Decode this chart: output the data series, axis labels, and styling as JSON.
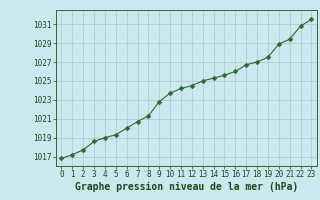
{
  "x": [
    0,
    1,
    2,
    3,
    4,
    5,
    6,
    7,
    8,
    9,
    10,
    11,
    12,
    13,
    14,
    15,
    16,
    17,
    18,
    19,
    20,
    21,
    22,
    23
  ],
  "y": [
    1016.8,
    1017.2,
    1017.7,
    1018.6,
    1019.0,
    1019.3,
    1020.0,
    1020.7,
    1021.3,
    1022.8,
    1023.7,
    1024.2,
    1024.5,
    1025.0,
    1025.3,
    1025.6,
    1026.0,
    1026.7,
    1027.0,
    1027.5,
    1028.9,
    1029.4,
    1030.8,
    1031.5
  ],
  "ylim": [
    1016.0,
    1032.5
  ],
  "yticks": [
    1017,
    1019,
    1021,
    1023,
    1025,
    1027,
    1029,
    1031
  ],
  "xticks": [
    0,
    1,
    2,
    3,
    4,
    5,
    6,
    7,
    8,
    9,
    10,
    11,
    12,
    13,
    14,
    15,
    16,
    17,
    18,
    19,
    20,
    21,
    22,
    23
  ],
  "xlabel": "Graphe pression niveau de la mer (hPa)",
  "line_color": "#2d6a2d",
  "marker": "D",
  "marker_size": 2.5,
  "bg_color": "#cce8ef",
  "grid_color": "#aacdd6",
  "tick_label_color": "#1a4a1a",
  "xlabel_color": "#1a4a1a",
  "spine_color": "#2d6a2d",
  "tick_fontsize": 5.5,
  "xlabel_fontsize": 7.0
}
